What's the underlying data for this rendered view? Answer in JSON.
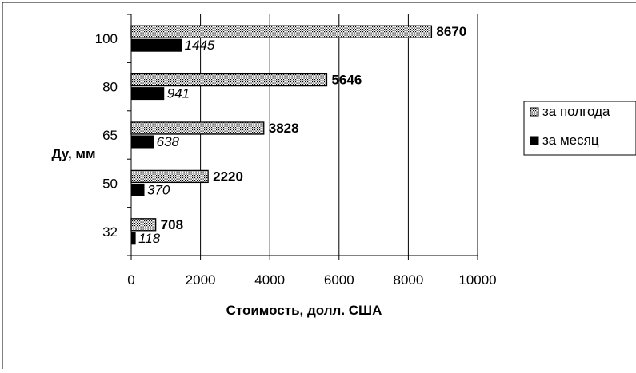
{
  "chart_data": {
    "type": "bar",
    "orientation": "horizontal",
    "ylabel": "Ду, мм",
    "xlabel": "Стоимость, долл. США",
    "categories": [
      "32",
      "50",
      "65",
      "80",
      "100"
    ],
    "xlim": [
      0,
      10000
    ],
    "xticks": [
      "0",
      "2000",
      "4000",
      "6000",
      "8000",
      "10000"
    ],
    "grid": "vertical",
    "legend_position": "right",
    "series": [
      {
        "name": "за полгода",
        "values": [
          708,
          2220,
          3828,
          5646,
          8670
        ],
        "labels": [
          "708",
          "2220",
          "3828",
          "5646",
          "8670"
        ],
        "fill": "dotted",
        "color": "#000000"
      },
      {
        "name": "за месяц",
        "values": [
          118,
          370,
          638,
          941,
          1445
        ],
        "labels": [
          "118",
          "370",
          "638",
          "941",
          "1445"
        ],
        "fill": "solid",
        "color": "#000000"
      }
    ]
  }
}
